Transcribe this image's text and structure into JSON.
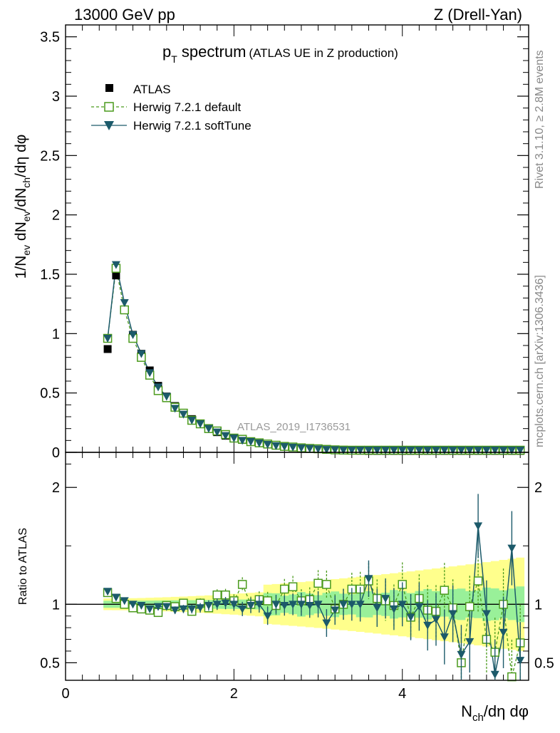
{
  "header": {
    "energy": "13000 GeV pp",
    "process": "Z (Drell-Yan)"
  },
  "side_labels": {
    "rivet": "Rivet 3.1.10, ≥ 2.8M events",
    "mcplots": "mcplots.cern.ch [arXiv:1306.3436]"
  },
  "watermark": "ATLAS_2019_I1736531",
  "chart_data": {
    "type": "scatter",
    "title": {
      "main": "p",
      "main_sub": "T",
      "main_rest": " spectrum",
      "sub": "(ATLAS UE in Z production)"
    },
    "ylabel": {
      "p1": "1/N",
      "s1": "ev",
      "p2": " dN",
      "s2": "ev",
      "p3": "/dN",
      "s3": "ch",
      "p4": "/dη dφ"
    },
    "xlabel": {
      "p1": "N",
      "s1": "ch",
      "p2": "/dη dφ"
    },
    "ratio_ylabel": "Ratio to ATLAS",
    "xlim": [
      0,
      5.5
    ],
    "ylim": [
      0,
      3.6
    ],
    "ratio_ylim": [
      0.35,
      2.3
    ],
    "x_ticks": [
      "0",
      "2",
      "4"
    ],
    "y_ticks": [
      "0",
      "0.5",
      "1",
      "1.5",
      "2",
      "2.5",
      "3",
      "3.5"
    ],
    "ratio_y_ticks": [
      "0.5",
      "1",
      "2"
    ],
    "ratio_y_ticks_right": [
      "0.5",
      "1",
      "2"
    ],
    "legend": [
      {
        "name": "ATLAS",
        "marker": "filled-square",
        "color": "#000000"
      },
      {
        "name": "Herwig 7.2.1 default",
        "marker": "open-square",
        "color": "#4a9a1c"
      },
      {
        "name": "Herwig 7.2.1 softTune",
        "marker": "filled-triangle-down",
        "color": "#1c5a6a"
      }
    ],
    "x": [
      0.5,
      0.6,
      0.7,
      0.8,
      0.9,
      1.0,
      1.1,
      1.2,
      1.3,
      1.4,
      1.5,
      1.6,
      1.7,
      1.8,
      1.9,
      2.0,
      2.1,
      2.2,
      2.3,
      2.4,
      2.5,
      2.6,
      2.7,
      2.8,
      2.9,
      3.0,
      3.1,
      3.2,
      3.3,
      3.4,
      3.5,
      3.6,
      3.7,
      3.8,
      3.9,
      4.0,
      4.1,
      4.2,
      4.3,
      4.4,
      4.5,
      4.6,
      4.7,
      4.8,
      4.9,
      5.0,
      5.1,
      5.2,
      5.3,
      5.4
    ],
    "series": [
      {
        "name": "ATLAS",
        "values": [
          0.87,
          1.49,
          1.2,
          0.99,
          0.83,
          0.69,
          0.56,
          0.47,
          0.39,
          0.33,
          0.28,
          0.24,
          0.2,
          0.17,
          0.14,
          0.12,
          0.105,
          0.09,
          0.078,
          0.067,
          0.058,
          0.05,
          0.043,
          0.037,
          0.032,
          0.028,
          0.024,
          0.021,
          0.018,
          0.016,
          0.014,
          0.012,
          0.01,
          0.009,
          0.008,
          0.007,
          0.006,
          0.005,
          0.0045,
          0.004,
          0.0035,
          0.003,
          0.0027,
          0.0024,
          0.0021,
          0.0019,
          0.0017,
          0.0015,
          0.0013,
          0.0012
        ]
      },
      {
        "name": "Herwig 7.2.1 default",
        "values": [
          0.96,
          1.55,
          1.2,
          0.96,
          0.8,
          0.65,
          0.52,
          0.46,
          0.38,
          0.33,
          0.27,
          0.24,
          0.2,
          0.18,
          0.15,
          0.12,
          0.11,
          0.09,
          0.08,
          0.07,
          0.06,
          0.05,
          0.045,
          0.038,
          0.033,
          0.03,
          0.025,
          0.021,
          0.019,
          0.017,
          0.015,
          0.013,
          0.011,
          0.009,
          0.009,
          0.007,
          0.006,
          0.005,
          0.004,
          0.004,
          0.003,
          0.002,
          0.002,
          0.002,
          0.002,
          0.001,
          0.001,
          0.001,
          0.001,
          0.001
        ],
        "ratio": [
          1.1,
          1.05,
          1.0,
          0.97,
          0.96,
          0.95,
          0.93,
          0.99,
          0.98,
          1.01,
          0.94,
          1.01,
          0.97,
          1.08,
          1.08,
          1.03,
          1.17,
          1.0,
          1.04,
          1.03,
          0.99,
          1.13,
          1.15,
          1.03,
          1.04,
          1.18,
          1.17,
          0.96,
          1.0,
          1.13,
          1.13,
          1.2,
          1.05,
          1.03,
          0.99,
          1.17,
          0.89,
          1.05,
          0.95,
          0.94,
          1.12,
          0.97,
          0.5,
          0.98,
          1.2,
          0.7,
          0.59,
          1.0,
          0.38,
          0.67
        ]
      },
      {
        "name": "Herwig 7.2.1 softTune",
        "values": [
          0.96,
          1.58,
          1.26,
          0.99,
          0.83,
          0.67,
          0.55,
          0.47,
          0.37,
          0.32,
          0.27,
          0.24,
          0.2,
          0.17,
          0.14,
          0.12,
          0.1,
          0.09,
          0.078,
          0.066,
          0.055,
          0.049,
          0.043,
          0.037,
          0.032,
          0.028,
          0.023,
          0.021,
          0.018,
          0.016,
          0.014,
          0.012,
          0.01,
          0.009,
          0.008,
          0.007,
          0.006,
          0.005,
          0.004,
          0.004,
          0.003,
          0.002,
          0.002,
          0.003,
          0.002,
          0.001,
          0.002,
          0.001,
          0.001,
          0.001
        ],
        "ratio": [
          1.11,
          1.06,
          1.03,
          1.0,
          0.99,
          0.96,
          0.98,
          0.98,
          0.95,
          0.96,
          0.96,
          0.97,
          0.99,
          1.0,
          1.01,
          1.0,
          0.96,
          0.99,
          1.0,
          0.9,
          1.0,
          0.99,
          1.0,
          1.0,
          0.99,
          1.0,
          0.84,
          0.95,
          1.0,
          1.0,
          1.0,
          1.22,
          0.97,
          1.05,
          0.96,
          1.0,
          0.89,
          0.98,
          0.82,
          0.87,
          0.72,
          0.92,
          0.57,
          0.68,
          1.67,
          0.92,
          0.4,
          0.76,
          1.48,
          0.52
        ]
      }
    ]
  }
}
